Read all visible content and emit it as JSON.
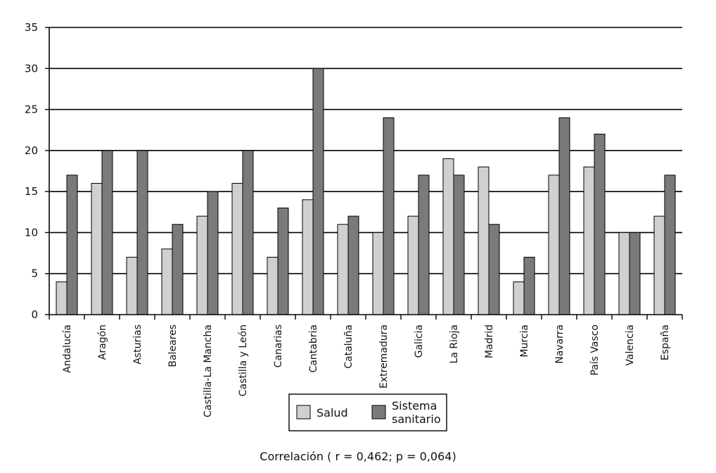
{
  "chart_data": {
    "type": "bar",
    "categories": [
      "Andalucía",
      "Aragón",
      "Asturias",
      "Baleares",
      "Castilla-La Mancha",
      "Castilla y León",
      "Canarias",
      "Cantabria",
      "Cataluña",
      "Extremadura",
      "Galicia",
      "La Rioja",
      "Madrid",
      "Murcia",
      "Navarra",
      "País Vasco",
      "Valencia",
      "España"
    ],
    "series": [
      {
        "name": "Salud",
        "values": [
          4,
          16,
          7,
          8,
          12,
          16,
          7,
          14,
          11,
          10,
          12,
          19,
          18,
          4,
          17,
          18,
          10,
          12
        ],
        "color": "#d0d0d0"
      },
      {
        "name": "Sistema sanitario",
        "values": [
          17,
          20,
          20,
          11,
          15,
          20,
          13,
          30,
          12,
          24,
          17,
          17,
          11,
          7,
          24,
          22,
          10,
          17
        ],
        "color": "#7a7a7a"
      }
    ],
    "legend_lines": [
      [
        "Salud"
      ],
      [
        "Sistema",
        "sanitario"
      ]
    ],
    "yticks": [
      0,
      5,
      10,
      15,
      20,
      25,
      30,
      35
    ],
    "ylim": [
      0,
      35
    ],
    "grid": true,
    "legend_position": "bottom-center",
    "caption": "Correlación ( r = 0,462; p = 0,064)"
  }
}
